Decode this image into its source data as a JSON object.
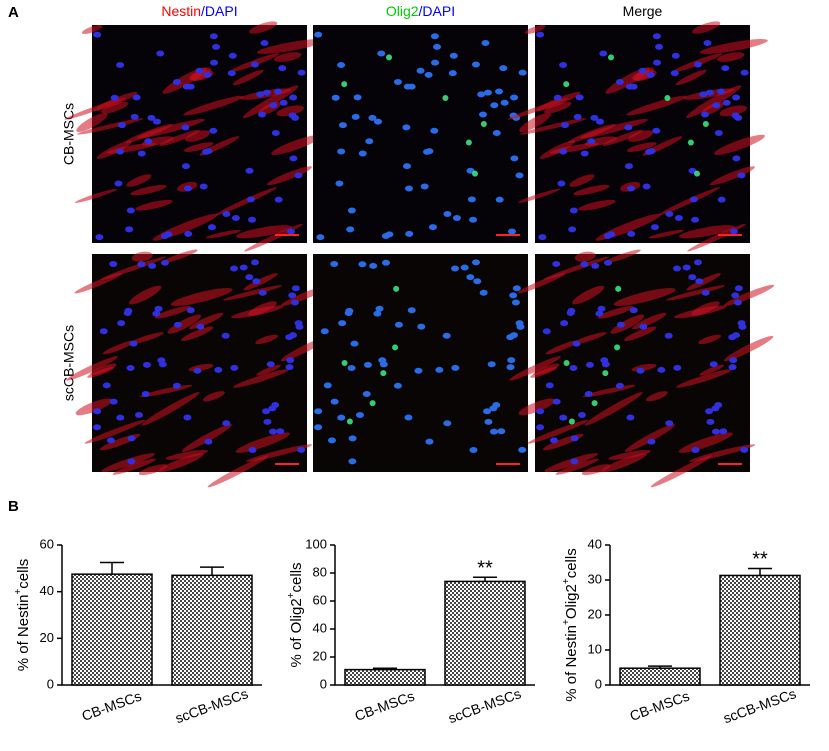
{
  "panel_a": {
    "label": "A",
    "columns": [
      {
        "parts": [
          {
            "text": "Nestin",
            "color": "#ff0000"
          },
          {
            "text": "/DAPI",
            "color": "#0000ff"
          }
        ]
      },
      {
        "parts": [
          {
            "text": "Olig2",
            "color": "#00cc00"
          },
          {
            "text": "/DAPI",
            "color": "#0000ff"
          }
        ]
      },
      {
        "parts": [
          {
            "text": "Merge",
            "color": "#000000"
          }
        ]
      }
    ],
    "rows": [
      "CB-MSCs",
      "scCB-MSCs"
    ]
  },
  "panel_b": {
    "label": "B"
  },
  "chart_data": [
    {
      "type": "bar",
      "y_label_parts": [
        {
          "text": "% of Nestin"
        },
        {
          "text": "+",
          "sup": true
        },
        {
          "text": "cells"
        }
      ],
      "categories": [
        "CB-MSCs",
        "scCB-MSCs"
      ],
      "values": [
        47.5,
        47
      ],
      "errors": [
        5,
        3.5
      ],
      "ylim": [
        0,
        60
      ],
      "yticks": [
        0,
        20,
        40,
        60
      ]
    },
    {
      "type": "bar",
      "y_label_parts": [
        {
          "text": "% of Olig2"
        },
        {
          "text": "+",
          "sup": true
        },
        {
          "text": "cells"
        }
      ],
      "categories": [
        "CB-MSCs",
        "scCB-MSCs"
      ],
      "values": [
        11,
        74
      ],
      "errors": [
        1,
        3
      ],
      "annotations": [
        null,
        "**"
      ],
      "ylim": [
        0,
        100
      ],
      "yticks": [
        0,
        20,
        40,
        60,
        80,
        100
      ]
    },
    {
      "type": "bar",
      "y_label_parts": [
        {
          "text": "% of Nestin"
        },
        {
          "text": "+",
          "sup": true
        },
        {
          "text": "Olig2"
        },
        {
          "text": "+",
          "sup": true
        },
        {
          "text": "cells"
        }
      ],
      "categories": [
        "CB-MSCs",
        "scCB-MSCs"
      ],
      "values": [
        4.8,
        31.3
      ],
      "errors": [
        0.6,
        2
      ],
      "annotations": [
        null,
        "**"
      ],
      "ylim": [
        0,
        40
      ],
      "yticks": [
        0,
        10,
        20,
        30,
        40
      ]
    }
  ]
}
